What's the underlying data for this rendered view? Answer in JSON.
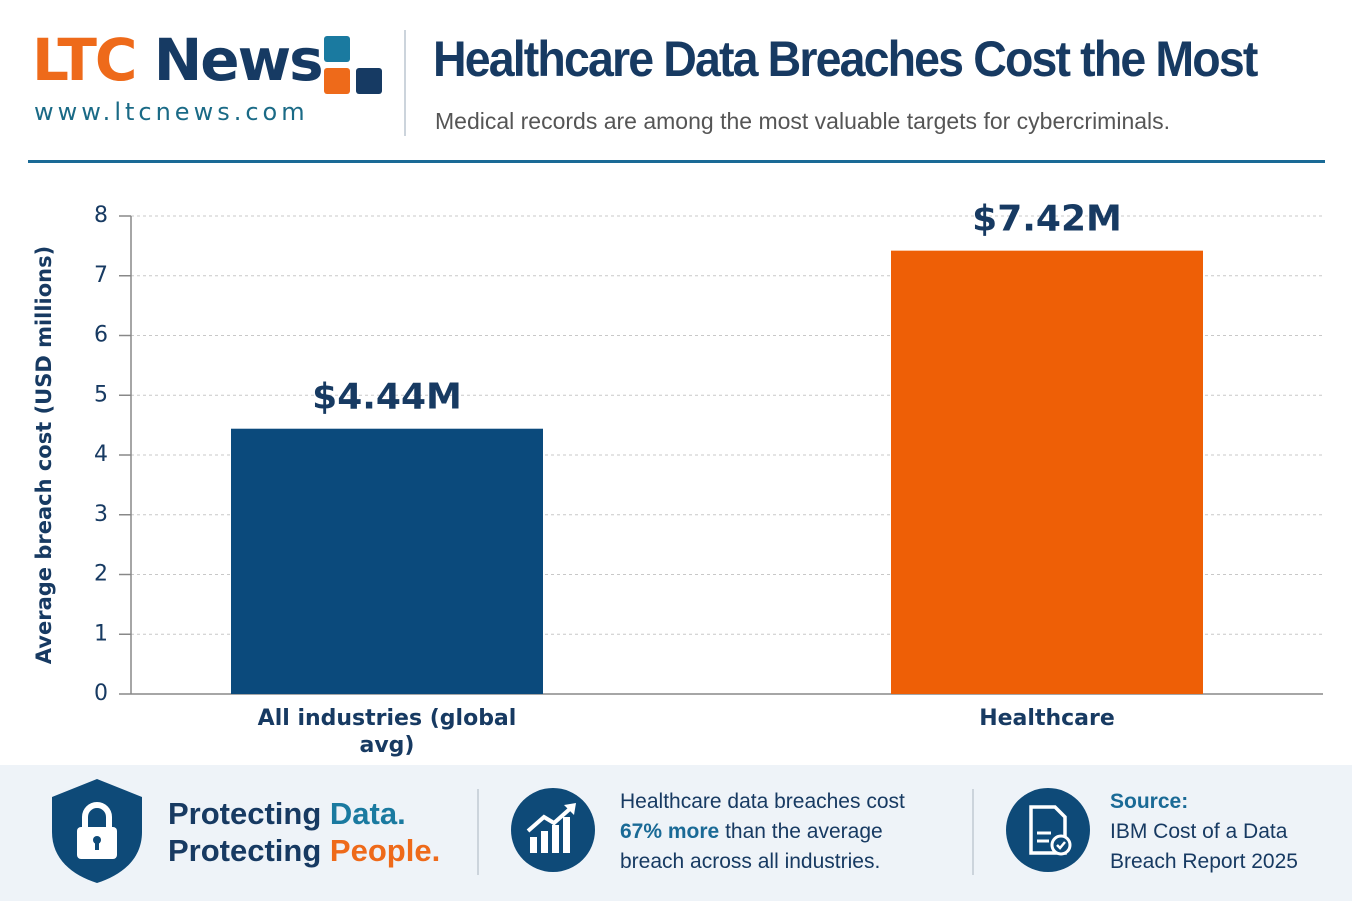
{
  "header": {
    "logo_orange": "LTC",
    "logo_navy": "News",
    "url": "www.ltcnews.com"
  },
  "chart_data": {
    "type": "bar",
    "title": "Healthcare Data Breaches Cost the Most",
    "subtitle": "Medical records are among the most valuable targets for cybercriminals.",
    "y_label": "Average breach cost (USD millions)",
    "categories": [
      "All industries (global avg)",
      "Healthcare"
    ],
    "values": [
      4.44,
      7.42
    ],
    "value_labels": [
      "$4.44M",
      "$7.42M"
    ],
    "colors": [
      "#0b4a7c",
      "#ee5f06"
    ],
    "ylim": [
      0,
      8
    ],
    "yticks": [
      0,
      1,
      2,
      3,
      4,
      5,
      6,
      7,
      8
    ],
    "grid": true
  },
  "footer": {
    "tagline": {
      "word1": "Protecting",
      "highlight1": "Data.",
      "word2": "Protecting",
      "highlight2": "People."
    },
    "stat": {
      "before": "Healthcare data breaches cost",
      "highlight": "67% more",
      "after": "than the average breach across all industries."
    },
    "source": {
      "label": "Source:",
      "text": "IBM Cost of a Data Breach Report 2025"
    }
  }
}
